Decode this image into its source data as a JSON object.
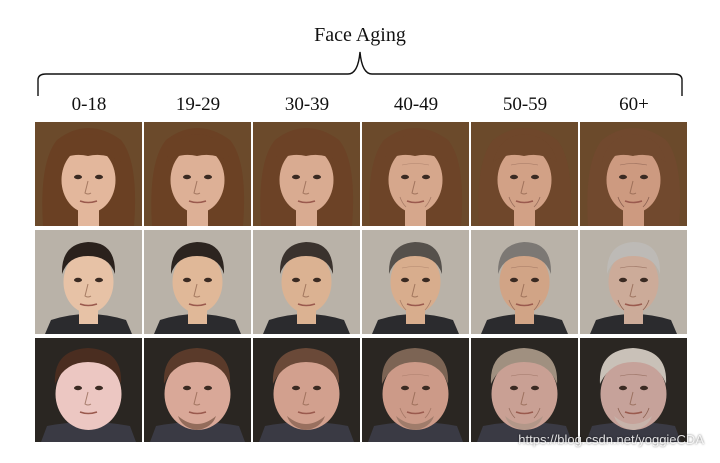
{
  "title": "Face Aging",
  "age_groups": [
    "0-18",
    "19-29",
    "30-39",
    "40-49",
    "50-59",
    "60+"
  ],
  "watermark": "https://blog.csdn.net/yoggieCDA",
  "rows": [
    {
      "subject": "woman",
      "background": "#6b4a2b",
      "hair": [
        "#6a4023",
        "#6b4124",
        "#6c4226",
        "#6d4428",
        "#6f472b",
        "#71492e"
      ],
      "skin": [
        "#e3b79c",
        "#ddb096",
        "#d9ab91",
        "#d6a78c",
        "#d2a186",
        "#cd9a80"
      ]
    },
    {
      "subject": "man",
      "background": "#b9b2a8",
      "hair": [
        "#2a211c",
        "#2c241f",
        "#3a322d",
        "#55504b",
        "#7c7874",
        "#bdbab6"
      ],
      "skin": [
        "#e7c2a6",
        "#e0b898",
        "#dbb292",
        "#d8ad8d",
        "#d1a486",
        "#ccab99"
      ]
    },
    {
      "subject": "heavyset man",
      "background": "#2a2622",
      "hair": [
        "#4a2d20",
        "#5a3a2a",
        "#6a4938",
        "#7c6454",
        "#a09080",
        "#c9c1b8"
      ],
      "skin": [
        "#ecc7c2",
        "#d9a898",
        "#d2a08e",
        "#cc9a88",
        "#c9a094",
        "#c6a29a"
      ]
    }
  ]
}
